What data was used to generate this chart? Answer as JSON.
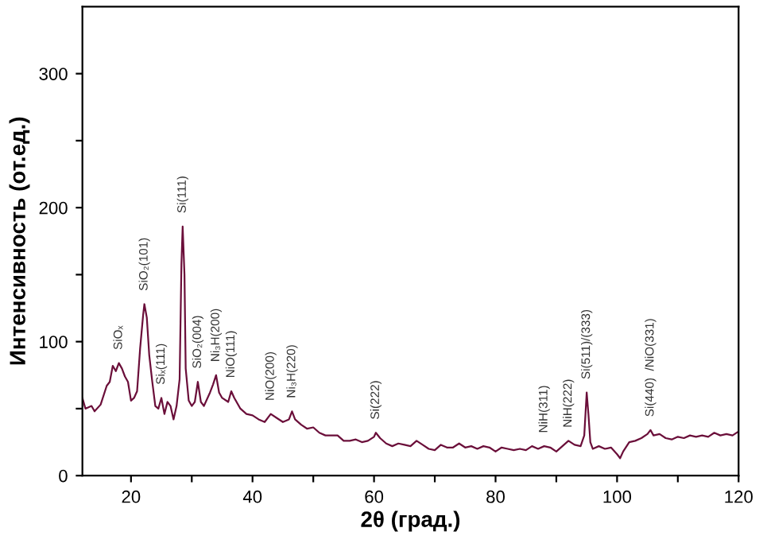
{
  "chart_data": {
    "type": "line",
    "xlabel": "2θ (град.)",
    "ylabel": "Интенсивность (от.ед.)",
    "xlim": [
      12,
      120
    ],
    "ylim": [
      0,
      350
    ],
    "xticks": [
      20,
      {
        "value": 30,
        "label": null
      },
      40,
      {
        "value": 50,
        "label": null
      },
      60,
      {
        "value": 70,
        "label": null
      },
      80,
      {
        "value": 90,
        "label": null
      },
      100,
      {
        "value": 110,
        "label": null
      },
      120
    ],
    "yticks": [
      0,
      {
        "value": 50,
        "label": null
      },
      100,
      {
        "value": 150,
        "label": null
      },
      200,
      {
        "value": 250,
        "label": null
      },
      300
    ],
    "grid": false,
    "legend": false,
    "marker": "none",
    "line_style": "solid",
    "series": [
      {
        "color": "#6b0f3a",
        "x": [
          12,
          12.5,
          13.5,
          14,
          15,
          16,
          16.5,
          17,
          17.5,
          18,
          18.5,
          19,
          19.5,
          20,
          20.5,
          21,
          21.5,
          22,
          22.2,
          22.6,
          23,
          23.5,
          24,
          24.5,
          25,
          25.5,
          26,
          26.5,
          27,
          27.5,
          28,
          28.3,
          28.5,
          28.8,
          29,
          29.5,
          30,
          30.5,
          31,
          31.5,
          32,
          33,
          33.5,
          34,
          34.5,
          35,
          36,
          36.5,
          37,
          38,
          39,
          40,
          41,
          42,
          43,
          44,
          45,
          46,
          46.5,
          47,
          48,
          49,
          50,
          51,
          52,
          53,
          54,
          55,
          56,
          57,
          58,
          59,
          60,
          60.3,
          61,
          62,
          63,
          64,
          65,
          66,
          67,
          68,
          69,
          70,
          71,
          72,
          73,
          74,
          75,
          76,
          77,
          78,
          79,
          80,
          81,
          82,
          83,
          84,
          85,
          86,
          87,
          88,
          89,
          90,
          91,
          92,
          93,
          94,
          94.6,
          95,
          95.3,
          95.6,
          96,
          97,
          98,
          99,
          100,
          100.5,
          101,
          102,
          103,
          104,
          105,
          105.5,
          106,
          107,
          108,
          109,
          110,
          111,
          112,
          113,
          114,
          115,
          116,
          117,
          118,
          119,
          120
        ],
        "values": [
          58,
          50,
          52,
          48,
          53,
          67,
          70,
          82,
          78,
          84,
          80,
          74,
          70,
          56,
          58,
          63,
          95,
          120,
          128,
          118,
          90,
          70,
          52,
          50,
          58,
          46,
          55,
          52,
          42,
          52,
          72,
          158,
          186,
          150,
          80,
          56,
          52,
          55,
          70,
          55,
          52,
          62,
          68,
          75,
          62,
          58,
          55,
          63,
          58,
          50,
          46,
          45,
          42,
          40,
          46,
          43,
          40,
          42,
          48,
          42,
          38,
          35,
          36,
          32,
          30,
          30,
          30,
          26,
          26,
          27,
          25,
          26,
          29,
          32,
          28,
          24,
          22,
          24,
          23,
          22,
          26,
          23,
          20,
          19,
          23,
          21,
          21,
          24,
          21,
          22,
          20,
          22,
          21,
          18,
          21,
          20,
          19,
          20,
          19,
          22,
          20,
          22,
          21,
          18,
          22,
          26,
          23,
          22,
          30,
          62,
          45,
          25,
          20,
          22,
          20,
          21,
          16,
          13,
          18,
          25,
          26,
          28,
          31,
          34,
          30,
          31,
          28,
          27,
          29,
          28,
          30,
          29,
          30,
          29,
          32,
          30,
          31,
          30,
          33
        ]
      }
    ],
    "annotations": [
      {
        "text": "SiOₓ",
        "x": 18,
        "y": 84
      },
      {
        "text": "SiO₂(101)",
        "x": 22.2,
        "y": 128
      },
      {
        "text": "Siₓ(111)",
        "x": 25,
        "y": 58
      },
      {
        "text": "Si(111)",
        "x": 28.5,
        "y": 186
      },
      {
        "text": "SiO₂(004)",
        "x": 31,
        "y": 70
      },
      {
        "text": "Ni₃H(200)",
        "x": 34,
        "y": 75
      },
      {
        "text": "NiO(111)",
        "x": 36.5,
        "y": 63
      },
      {
        "text": "NiO(200)",
        "x": 43,
        "y": 46
      },
      {
        "text": "Ni₃H(220)",
        "x": 46.5,
        "y": 48
      },
      {
        "text": "Si(222)",
        "x": 60.3,
        "y": 32
      },
      {
        "text": "NiH(311)",
        "x": 88,
        "y": 22
      },
      {
        "text": "NiH(222)",
        "x": 92,
        "y": 26
      },
      {
        "text": "Si(511)/(333)",
        "x": 95,
        "y": 62
      },
      {
        "text": "Si(440)  /NiO(331)",
        "x": 105.5,
        "y": 34
      }
    ]
  }
}
